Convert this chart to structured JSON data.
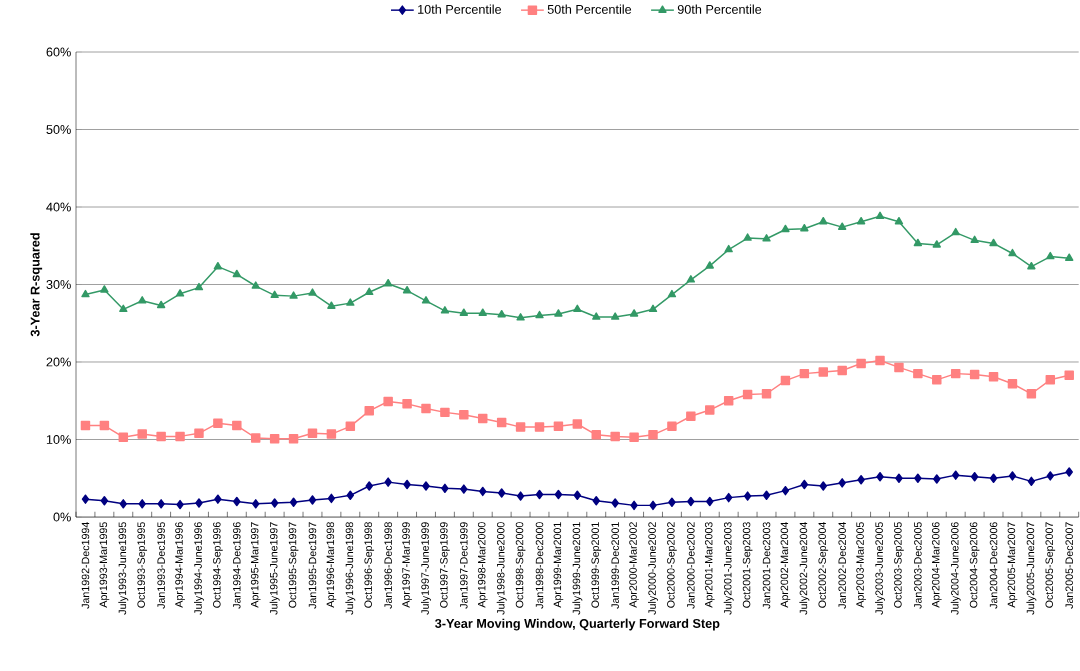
{
  "chart_data": {
    "type": "line",
    "xlabel": "3-Year Moving Window, Quarterly Forward Step",
    "ylabel": "3-Year R-squared",
    "categories": [
      "Jan1992-Dec1994",
      "Apr1993-Mar1995",
      "July1993-June1995",
      "Oct1993-Sep1995",
      "Jan1993-Dec1995",
      "Apr1994-Mar1996",
      "July1994-June1996",
      "Oct1994-Sep1996",
      "Jan1994-Dec1996",
      "Apr1995-Mar1997",
      "July1995-June1997",
      "Oct1995-Sep1997",
      "Jan1995-Dec1997",
      "Apr1996-Mar1998",
      "July1996-June1998",
      "Oct1996-Sep1998",
      "Jan1996-Dec1998",
      "Apr1997-Mar1999",
      "July1997-June1999",
      "Oct1997-Sep1999",
      "Jan1997-Dec1999",
      "Apr1998-Mar2000",
      "July1998-June2000",
      "Oct1998-Sep2000",
      "Jan1998-Dec2000",
      "Apr1999-Mar2001",
      "July1999-June2001",
      "Oct1999-Sep2001",
      "Jan1999-Dec2001",
      "Apr2000-Mar2002",
      "July2000-June2002",
      "Oct2000-Sep2002",
      "Jan2000-Dec2002",
      "Apr2001-Mar2003",
      "July2001-June2003",
      "Oct2001-Sep2003",
      "Jan2001-Dec2003",
      "Apr2002-Mar2004",
      "July2002-June2004",
      "Oct2002-Sep2004",
      "Jan2002-Dec2004",
      "Apr2003-Mar2005",
      "July2003-June2005",
      "Oct2003-Sep2005",
      "Jan2003-Dec2005",
      "Apr2004-Mar2006",
      "July2004-June2006",
      "Oct2004-Sep2006",
      "Jan2004-Dec2006",
      "Apr2005-Mar2007",
      "July2005-June2007",
      "Oct2005-Sep2007",
      "Jan2005-Dec2007"
    ],
    "series": [
      {
        "name": "10th Percentile",
        "color": "#000080",
        "marker": "diamond",
        "values": [
          2.3,
          2.1,
          1.7,
          1.7,
          1.7,
          1.6,
          1.8,
          2.3,
          2.0,
          1.7,
          1.8,
          1.9,
          2.2,
          2.4,
          2.8,
          4.0,
          4.5,
          4.2,
          4.0,
          3.7,
          3.6,
          3.3,
          3.1,
          2.7,
          2.9,
          2.9,
          2.8,
          2.1,
          1.8,
          1.5,
          1.5,
          1.9,
          2.0,
          2.0,
          2.5,
          2.7,
          2.8,
          3.4,
          4.2,
          4.0,
          4.4,
          4.8,
          5.2,
          5.0,
          5.0,
          4.9,
          5.4,
          5.2,
          5.0,
          5.3,
          4.6,
          5.3,
          5.8
        ]
      },
      {
        "name": "50th Percentile",
        "color": "#ff8080",
        "marker": "square",
        "values": [
          11.8,
          11.8,
          10.3,
          10.7,
          10.4,
          10.4,
          10.8,
          12.1,
          11.8,
          10.2,
          10.1,
          10.1,
          10.8,
          10.7,
          11.7,
          13.7,
          14.9,
          14.6,
          14.0,
          13.5,
          13.2,
          12.7,
          12.2,
          11.6,
          11.6,
          11.7,
          12.0,
          10.6,
          10.4,
          10.3,
          10.6,
          11.7,
          13.0,
          13.8,
          15.0,
          15.8,
          15.9,
          17.6,
          18.5,
          18.7,
          18.9,
          19.8,
          20.2,
          19.3,
          18.5,
          17.7,
          18.5,
          18.4,
          18.1,
          17.2,
          15.9,
          17.7,
          18.3
        ]
      },
      {
        "name": "90th Percentile",
        "color": "#339966",
        "marker": "triangle",
        "values": [
          28.7,
          29.3,
          26.8,
          27.9,
          27.3,
          28.8,
          29.6,
          32.3,
          31.3,
          29.8,
          28.6,
          28.5,
          28.9,
          27.2,
          27.6,
          29.0,
          30.1,
          29.2,
          27.9,
          26.6,
          26.3,
          26.3,
          26.1,
          25.7,
          26.0,
          26.2,
          26.8,
          25.8,
          25.8,
          26.2,
          26.8,
          28.7,
          30.6,
          32.4,
          34.5,
          36.0,
          35.9,
          37.1,
          37.2,
          38.1,
          37.4,
          38.1,
          38.8,
          38.1,
          35.3,
          35.1,
          36.7,
          35.7,
          35.3,
          34.0,
          32.3,
          33.6,
          33.4
        ]
      }
    ],
    "ylim": [
      0,
      60
    ],
    "yticks": [
      {
        "value": 0,
        "label": "0%"
      },
      {
        "value": 10,
        "label": "10%"
      },
      {
        "value": 20,
        "label": "20%"
      },
      {
        "value": 30,
        "label": "30%"
      },
      {
        "value": 40,
        "label": "40%"
      },
      {
        "value": 50,
        "label": "50%"
      },
      {
        "value": 60,
        "label": "60%"
      }
    ],
    "grid": "y",
    "legend": "top",
    "line_style": "solid"
  }
}
